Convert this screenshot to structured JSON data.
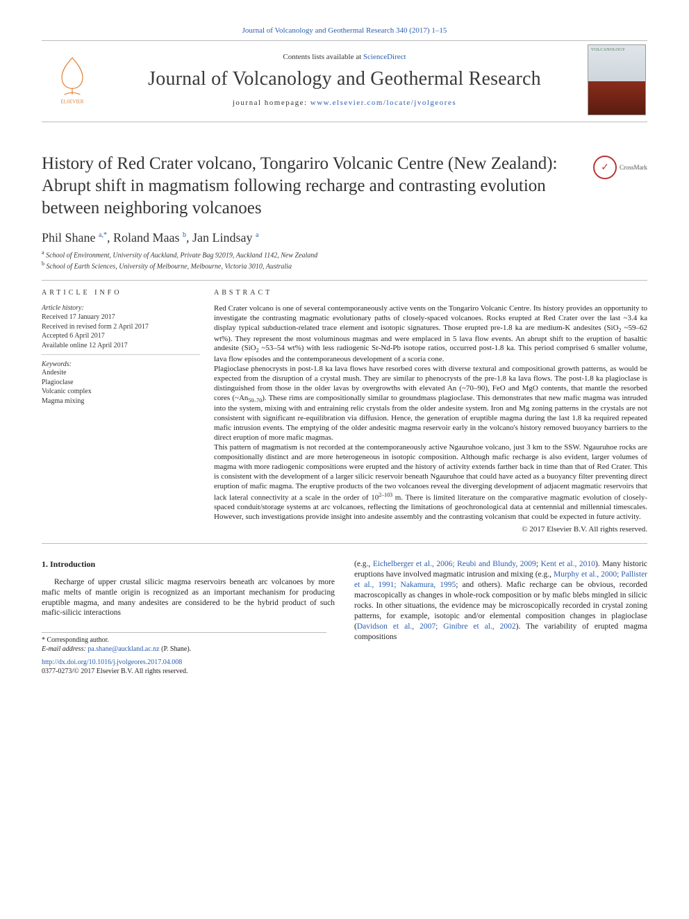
{
  "journal": {
    "running_head": "Journal of Volcanology and Geothermal Research 340 (2017) 1–15",
    "contents_line_prefix": "Contents lists available at ",
    "contents_link": "ScienceDirect",
    "name": "Journal of Volcanology and Geothermal Research",
    "homepage_label": "journal homepage: ",
    "homepage_url": "www.elsevier.com/locate/jvolgeores",
    "cover_label": "VOLCANOLOGY"
  },
  "publisher": {
    "name": "ELSEVIER"
  },
  "crossmark": {
    "label": "CrossMark"
  },
  "article": {
    "title": "History of Red Crater volcano, Tongariro Volcanic Centre (New Zealand): Abrupt shift in magmatism following recharge and contrasting evolution between neighboring volcanoes",
    "authors_html": "Phil Shane <span class='sup'>a,*</span>, Roland Maas <span class='sup'>b</span>, Jan Lindsay <span class='sup'>a</span>",
    "affiliations": [
      "School of Environment, University of Auckland, Private Bag 92019, Auckland 1142, New Zealand",
      "School of Earth Sciences, University of Melbourne, Melbourne, Victoria 3010, Australia"
    ],
    "affil_markers": [
      "a",
      "b"
    ]
  },
  "article_info": {
    "section_heading": "article info",
    "history_heading": "Article history:",
    "history": [
      "Received 17 January 2017",
      "Received in revised form 2 April 2017",
      "Accepted 6 April 2017",
      "Available online 12 April 2017"
    ],
    "keywords_heading": "Keywords:",
    "keywords": [
      "Andesite",
      "Plagioclase",
      "Volcanic complex",
      "Magma mixing"
    ]
  },
  "abstract": {
    "section_heading": "abstract",
    "p1": "Red Crater volcano is one of several contemporaneously active vents on the Tongariro Volcanic Centre. Its history provides an opportunity to investigate the contrasting magmatic evolutionary paths of closely-spaced volcanoes. Rocks erupted at Red Crater over the last ~3.4 ka display typical subduction-related trace element and isotopic signatures. Those erupted pre-1.8 ka are medium-K andesites (SiO",
    "p1_tail": " ~59–62 wt%). They represent the most voluminous magmas and were emplaced in 5 lava flow events. An abrupt shift to the eruption of basaltic andesite (SiO",
    "p1_tail2": " ~53–54 wt%) with less radiogenic Sr-Nd-Pb isotope ratios, occurred post-1.8 ka. This period comprised 6 smaller volume, lava flow episodes and the contemporaneous development of a scoria cone.",
    "p2a": "Plagioclase phenocrysts in post-1.8 ka lava flows have resorbed cores with diverse textural and compositional growth patterns, as would be expected from the disruption of a crystal mush. They are similar to phenocrysts of the pre-1.8 ka lava flows. The post-1.8 ka plagioclase is distinguished from those in the older lavas by overgrowths with elevated An (~70–90), FeO and MgO contents, that mantle the resorbed cores (~An",
    "p2b": "). These rims are compositionally similar to groundmass plagioclase. This demonstrates that new mafic magma was intruded into the system, mixing with and entraining relic crystals from the older andesite system. Iron and Mg zoning patterns in the crystals are not consistent with significant re-equilibration via diffusion. Hence, the generation of eruptible magma during the last 1.8 ka required repeated mafic intrusion events. The emptying of the older andesitic magma reservoir early in the volcano's history removed buoyancy barriers to the direct eruption of more mafic magmas.",
    "p3a": "This pattern of magmatism is not recorded at the contemporaneously active Ngauruhoe volcano, just 3 km to the SSW. Ngauruhoe rocks are compositionally distinct and are more heterogeneous in isotopic composition. Although mafic recharge is also evident, larger volumes of magma with more radiogenic compositions were erupted and the history of activity extends farther back in time than that of Red Crater. This is consistent with the development of a larger silicic reservoir beneath Ngauruhoe that could have acted as a buoyancy filter preventing direct eruption of mafic magma. The eruptive products of the two volcanoes reveal the diverging development of adjacent magmatic reservoirs that lack lateral connectivity at a scale in the order of 10",
    "p3b": " m. There is limited literature on the comparative magmatic evolution of closely-spaced conduit/storage systems at arc volcanoes, reflecting the limitations of geochronological data at centennial and millennial timescales. However, such investigations provide insight into andesite assembly and the contrasting volcanism that could be expected in future activity.",
    "an_sub": "50–70",
    "scale_sup": "2–10",
    "scale_sup2": "3",
    "copyright": "© 2017 Elsevier B.V. All rights reserved."
  },
  "body": {
    "intro_heading": "1. Introduction",
    "left_para": "Recharge of upper crustal silicic magma reservoirs beneath arc volcanoes by more mafic melts of mantle origin is recognized as an important mechanism for producing eruptible magma, and many andesites are considered to be the hybrid product of such mafic-silicic interactions",
    "right_pre": "(e.g., ",
    "right_ref1": "Eichelberger et al., 2006; Reubi and Blundy, 2009",
    "right_mid1": "; ",
    "right_ref1b": "Kent et al., 2010",
    "right_mid2": "). Many historic eruptions have involved magmatic intrusion and mixing (e.g., ",
    "right_ref2": "Murphy et al., 2000; Pallister et al., 1991; Nakamura, 1995",
    "right_mid3": "; and others). Mafic recharge can be obvious, recorded macroscopically as changes in whole-rock composition or by mafic blebs mingled in silicic rocks. In other situations, the evidence may be microscopically recorded in crystal zoning patterns, for example, isotopic and/or elemental composition changes in plagioclase (",
    "right_ref3": "Davidson et al., 2007; Ginibre et al., 2002",
    "right_tail": "). The variability of erupted magma compositions"
  },
  "footnotes": {
    "corr_label": "* Corresponding author.",
    "email_label": "E-mail address: ",
    "email": "pa.shane@auckland.ac.nz",
    "email_suffix": " (P. Shane)."
  },
  "doi": {
    "url": "http://dx.doi.org/10.1016/j.jvolgeores.2017.04.008",
    "line2": "0377-0273/© 2017 Elsevier B.V. All rights reserved."
  },
  "colors": {
    "link": "#2a5db0",
    "rule": "#bbbbbb",
    "text": "#222222"
  }
}
